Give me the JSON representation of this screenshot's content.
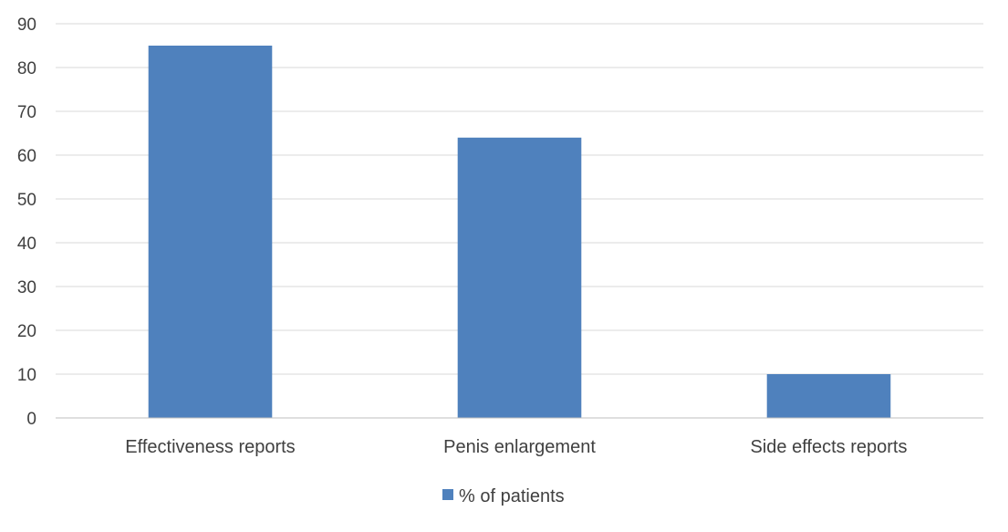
{
  "chart_data": {
    "type": "bar",
    "categories": [
      "Effectiveness reports",
      "Penis enlargement",
      "Side effects reports"
    ],
    "series": [
      {
        "name": "% of patients",
        "values": [
          85,
          64,
          10
        ],
        "color": "#4F81BD"
      }
    ],
    "ylim": [
      0,
      90
    ],
    "yticks": [
      0,
      10,
      20,
      30,
      40,
      50,
      60,
      70,
      80,
      90
    ],
    "grid": true,
    "legend_position": "bottom",
    "gridline_color": "#D9D9D9",
    "axis_color": "#BFBFBF"
  }
}
